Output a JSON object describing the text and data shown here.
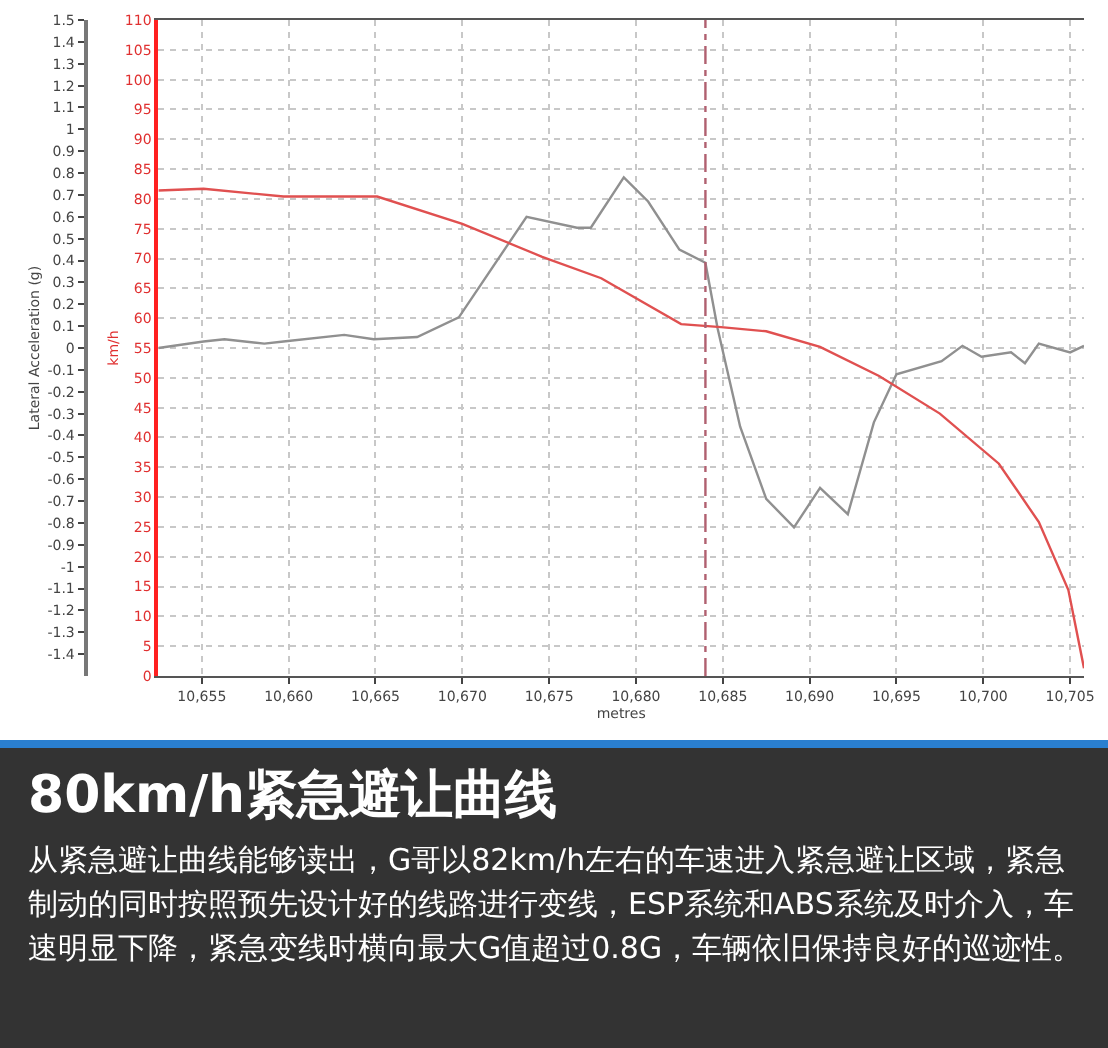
{
  "chart_data": {
    "type": "line",
    "title": "80km/h紧急避让曲线",
    "xlabel": "metres",
    "ylabel": "Lateral Acceleration (g)",
    "y2label": "km/h",
    "annotations": [
      "从紧急避让曲线能够读出，G哥以82km/h左右的车速进入紧急避让区域，紧急制动的同时按照预先设计好的线路进行变线，ESP系统和ABS系统及时介入，车速明显下降，紧急变线时横向最大G值超过0.8G，车辆依旧保持良好的巡迹性。"
    ],
    "series": [
      {
        "color": "#909090",
        "axis": "y",
        "x": [
          10652.5,
          10655.1,
          10656.3,
          10658.6,
          10659.7,
          10663.2,
          10664.9,
          10667.4,
          10669.8,
          10673.7,
          10676.6,
          10677.4,
          10679.3,
          10680.7,
          10682.5,
          10684.0,
          10684.7,
          10686.0,
          10687.5,
          10689.1,
          10690.6,
          10692.2,
          10693.7,
          10695.0,
          10697.6,
          10698.8,
          10699.9,
          10701.6,
          10702.4,
          10703.2,
          10705.0,
          10705.8
        ],
        "values": [
          0,
          0.03,
          0.04,
          0.02,
          0.03,
          0.06,
          0.04,
          0.05,
          0.14,
          0.6,
          0.55,
          0.55,
          0.78,
          0.67,
          0.45,
          0.39,
          0.09,
          -0.36,
          -0.69,
          -0.82,
          -0.64,
          -0.76,
          -0.34,
          -0.12,
          -0.06,
          0.01,
          -0.04,
          -0.02,
          -0.07,
          0.02,
          -0.02,
          0.01
        ]
      },
      {
        "color": "#e05050",
        "axis": "y2",
        "x": [
          10652.5,
          10655.1,
          10659.7,
          10665.1,
          10670.0,
          10674.6,
          10678.0,
          10682.6,
          10684.9,
          10687.5,
          10690.6,
          10694.0,
          10697.5,
          10700.9,
          10703.2,
          10704.9,
          10705.8
        ],
        "values": [
          81.4,
          81.7,
          80.4,
          80.4,
          75.8,
          70.3,
          66.7,
          59,
          58.5,
          57.8,
          55.2,
          50.3,
          44,
          35.6,
          25.8,
          14.4,
          1.3
        ]
      }
    ],
    "xlim": [
      10652.5,
      10705.8
    ],
    "xticks": [
      {
        "value": 10655,
        "label": "10,655"
      },
      {
        "value": 10660,
        "label": "10,660"
      },
      {
        "value": 10665,
        "label": "10,665"
      },
      {
        "value": 10670,
        "label": "10,670"
      },
      {
        "value": 10675,
        "label": "10,675"
      },
      {
        "value": 10680,
        "label": "10,680"
      },
      {
        "value": 10685,
        "label": "10,685"
      },
      {
        "value": 10690,
        "label": "10,690"
      },
      {
        "value": 10695,
        "label": "10,695"
      },
      {
        "value": 10700,
        "label": "10,700"
      },
      {
        "value": 10705,
        "label": "10,705"
      }
    ],
    "ylim": [
      -1.5,
      1.5
    ],
    "yticks": [
      -1.4,
      -1.3,
      -1.2,
      -1.1,
      -1,
      -0.9,
      -0.8,
      -0.7,
      -0.6,
      -0.5,
      -0.4,
      -0.3,
      -0.2,
      -0.1,
      0,
      0.1,
      0.2,
      0.3,
      0.4,
      0.5,
      0.6,
      0.7,
      0.8,
      0.9,
      1,
      1.1,
      1.2,
      1.3,
      1.4,
      1.5
    ],
    "y2lim": [
      0,
      110
    ],
    "y2ticks": [
      0,
      5,
      10,
      15,
      20,
      25,
      30,
      35,
      40,
      45,
      50,
      55,
      60,
      65,
      70,
      75,
      80,
      85,
      90,
      95,
      100,
      105,
      110
    ],
    "ref_lines": [
      {
        "axis": "x",
        "value": 10684,
        "color": "#b06070",
        "line_style": "dashed"
      }
    ],
    "grid": true,
    "marker": "none",
    "line_style": "solid"
  }
}
